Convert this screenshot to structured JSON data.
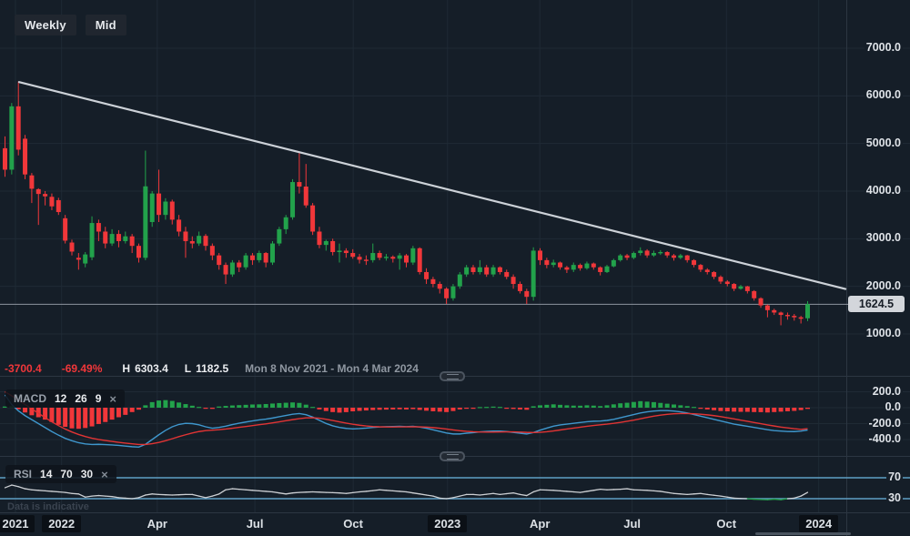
{
  "ui": {
    "toolbar": {
      "timeframe_label": "Weekly",
      "line_type_label": "Mid"
    },
    "status": {
      "change": "-3700.4",
      "change_pct": "-69.49%",
      "high_label": "H",
      "high": "6303.4",
      "low_label": "L",
      "low": "1182.5",
      "range": "Mon 8 Nov 2021 - Mon 4 Mar 2024"
    },
    "indicators": {
      "macd": {
        "name": "MACD",
        "p1": "12",
        "p2": "26",
        "p3": "9",
        "close_glyph": "×"
      },
      "rsi": {
        "name": "RSI",
        "p1": "14",
        "p2": "70",
        "p3": "30",
        "close_glyph": "×"
      }
    },
    "footnote": "Data is indicative",
    "last_price": "1624.5"
  },
  "colors": {
    "up": "#22a24b",
    "down": "#f1373a",
    "macd_line": "#3f97cd",
    "signal_line": "#e13434",
    "rsi_line": "#cdd0d4",
    "rsi_levels": "#5f9fc5",
    "trendline": "#ccd1d7",
    "price_line": "#8e949e",
    "grid": "#1f2a35",
    "border": "#2c3642",
    "axis_text": "#dfe3e8",
    "badge_bg": "#d3d6db",
    "badge_text": "#181e27",
    "scrollbar": "#4a545f"
  },
  "chart_data": {
    "type": "candlestick",
    "interval": "weekly",
    "range_label": "Mon 8 Nov 2021 - Mon 4 Mar 2024",
    "high": 6303.4,
    "low": 1182.5,
    "last_close": 1624.5,
    "price_axis": [
      {
        "label": "7000.0",
        "value": 7000
      },
      {
        "label": "6000.0",
        "value": 6000
      },
      {
        "label": "5000.0",
        "value": 5000
      },
      {
        "label": "4000.0",
        "value": 4000
      },
      {
        "label": "3000.0",
        "value": 3000
      },
      {
        "label": "2000.0",
        "value": 2000
      },
      {
        "label": "1000.0",
        "value": 1000
      }
    ],
    "macd_axis": [
      {
        "label": "200.0",
        "value": 200
      },
      {
        "label": "0.0",
        "value": 0
      },
      {
        "label": "-200.0",
        "value": -200
      },
      {
        "label": "-400.0",
        "value": -400
      }
    ],
    "rsi_axis": [
      {
        "label": "70",
        "value": 70
      },
      {
        "label": "30",
        "value": 30
      }
    ],
    "time_axis": [
      {
        "label": "2021",
        "i": 1.9,
        "year": true
      },
      {
        "label": "2022",
        "i": 8.8,
        "year": true
      },
      {
        "label": "Apr",
        "i": 23.1
      },
      {
        "label": "Jul",
        "i": 37.7
      },
      {
        "label": "Oct",
        "i": 52.4
      },
      {
        "label": "2023",
        "i": 66.5,
        "year": true
      },
      {
        "label": "Apr",
        "i": 80.3
      },
      {
        "label": "Jul",
        "i": 94.1
      },
      {
        "label": "Oct",
        "i": 108.2
      },
      {
        "label": "2024",
        "i": 122,
        "year": true
      }
    ],
    "trendline": {
      "from": {
        "i": 2.45,
        "price": 6290
      },
      "to": {
        "i": 126,
        "price": 1945
      }
    },
    "candles": [
      [
        4900,
        5150,
        4300,
        4450
      ],
      [
        4450,
        5850,
        4350,
        5780
      ],
      [
        5780,
        6303.4,
        4750,
        4870
      ],
      [
        5100,
        5180,
        4250,
        4350
      ],
      [
        4330,
        4380,
        3750,
        4050
      ],
      [
        4040,
        4060,
        3290,
        3940
      ],
      [
        3940,
        4000,
        3700,
        3890
      ],
      [
        3880,
        3950,
        3600,
        3680
      ],
      [
        3810,
        3860,
        3500,
        3560
      ],
      [
        3430,
        3500,
        2900,
        2960
      ],
      [
        2920,
        2980,
        2650,
        2730
      ],
      [
        2600,
        2700,
        2350,
        2560
      ],
      [
        2480,
        2720,
        2400,
        2670
      ],
      [
        2610,
        3470,
        2550,
        3330
      ],
      [
        3330,
        3400,
        2950,
        3150
      ],
      [
        3150,
        3250,
        2800,
        2900
      ],
      [
        2900,
        3200,
        2850,
        3100
      ],
      [
        3100,
        3180,
        2820,
        2950
      ],
      [
        2950,
        3150,
        2900,
        3050
      ],
      [
        3050,
        3100,
        2700,
        2850
      ],
      [
        2850,
        2900,
        2500,
        2600
      ],
      [
        2600,
        4850,
        2550,
        4100
      ],
      [
        3350,
        4000,
        3250,
        3950
      ],
      [
        3950,
        4450,
        3350,
        3500
      ],
      [
        3500,
        3850,
        3400,
        3780
      ],
      [
        3780,
        3820,
        3300,
        3400
      ],
      [
        3400,
        3500,
        3050,
        3150
      ],
      [
        3150,
        3250,
        2600,
        2950
      ],
      [
        2950,
        3050,
        2800,
        2900
      ],
      [
        2900,
        3150,
        2850,
        3060
      ],
      [
        3060,
        3100,
        2750,
        2850
      ],
      [
        2850,
        2900,
        2550,
        2650
      ],
      [
        2650,
        2700,
        2350,
        2450
      ],
      [
        2450,
        2500,
        2050,
        2250
      ],
      [
        2250,
        2550,
        2200,
        2500
      ],
      [
        2500,
        2550,
        2300,
        2400
      ],
      [
        2400,
        2700,
        2350,
        2650
      ],
      [
        2650,
        2700,
        2450,
        2550
      ],
      [
        2550,
        2750,
        2500,
        2700
      ],
      [
        2700,
        2720,
        2400,
        2500
      ],
      [
        2500,
        2950,
        2450,
        2900
      ],
      [
        2900,
        3250,
        2850,
        3200
      ],
      [
        3200,
        3500,
        3100,
        3450
      ],
      [
        3450,
        4250,
        3400,
        4190
      ],
      [
        4190,
        4800,
        3950,
        4095
      ],
      [
        4095,
        4570,
        3650,
        3700
      ],
      [
        3700,
        3750,
        3080,
        3150
      ],
      [
        3150,
        3250,
        2800,
        2870
      ],
      [
        2870,
        2980,
        2750,
        2950
      ],
      [
        2950,
        3000,
        2650,
        2720
      ],
      [
        2720,
        2900,
        2500,
        2750
      ],
      [
        2750,
        2800,
        2600,
        2700
      ],
      [
        2700,
        2780,
        2580,
        2620
      ],
      [
        2620,
        2680,
        2480,
        2560
      ],
      [
        2560,
        2650,
        2450,
        2550
      ],
      [
        2550,
        2900,
        2500,
        2700
      ],
      [
        2700,
        2750,
        2550,
        2600
      ],
      [
        2600,
        2680,
        2540,
        2620
      ],
      [
        2620,
        2650,
        2500,
        2580
      ],
      [
        2580,
        2700,
        2350,
        2650
      ],
      [
        2650,
        2680,
        2400,
        2500
      ],
      [
        2500,
        2850,
        2450,
        2800
      ],
      [
        2800,
        2820,
        2250,
        2300
      ],
      [
        2300,
        2380,
        2050,
        2150
      ],
      [
        2150,
        2200,
        1980,
        2050
      ],
      [
        2050,
        2100,
        1850,
        1950
      ],
      [
        1950,
        1980,
        1630,
        1750
      ],
      [
        1750,
        2050,
        1700,
        2000
      ],
      [
        2000,
        2300,
        1950,
        2250
      ],
      [
        2250,
        2450,
        2200,
        2400
      ],
      [
        2400,
        2450,
        2250,
        2300
      ],
      [
        2300,
        2550,
        2250,
        2400
      ],
      [
        2400,
        2450,
        2200,
        2250
      ],
      [
        2250,
        2450,
        2200,
        2400
      ],
      [
        2400,
        2420,
        2250,
        2300
      ],
      [
        2300,
        2350,
        2150,
        2200
      ],
      [
        2200,
        2250,
        1950,
        2050
      ],
      [
        2050,
        2100,
        1850,
        1900
      ],
      [
        1900,
        1950,
        1630,
        1780
      ],
      [
        1780,
        2820,
        1700,
        2750
      ],
      [
        2750,
        2800,
        2450,
        2550
      ],
      [
        2550,
        2600,
        2380,
        2450
      ],
      [
        2450,
        2560,
        2400,
        2500
      ],
      [
        2500,
        2520,
        2350,
        2400
      ],
      [
        2400,
        2430,
        2280,
        2350
      ],
      [
        2350,
        2500,
        2300,
        2450
      ],
      [
        2450,
        2480,
        2330,
        2380
      ],
      [
        2380,
        2520,
        2350,
        2480
      ],
      [
        2480,
        2500,
        2350,
        2400
      ],
      [
        2400,
        2420,
        2230,
        2300
      ],
      [
        2300,
        2450,
        2280,
        2420
      ],
      [
        2420,
        2580,
        2400,
        2550
      ],
      [
        2550,
        2680,
        2520,
        2650
      ],
      [
        2650,
        2680,
        2550,
        2600
      ],
      [
        2600,
        2730,
        2570,
        2700
      ],
      [
        2700,
        2820,
        2650,
        2750
      ],
      [
        2750,
        2780,
        2600,
        2650
      ],
      [
        2650,
        2750,
        2620,
        2700
      ],
      [
        2700,
        2760,
        2660,
        2720
      ],
      [
        2720,
        2740,
        2600,
        2650
      ],
      [
        2650,
        2680,
        2540,
        2600
      ],
      [
        2600,
        2680,
        2570,
        2650
      ],
      [
        2650,
        2660,
        2500,
        2550
      ],
      [
        2550,
        2570,
        2400,
        2450
      ],
      [
        2450,
        2470,
        2300,
        2350
      ],
      [
        2350,
        2380,
        2250,
        2300
      ],
      [
        2300,
        2320,
        2150,
        2200
      ],
      [
        2200,
        2230,
        2050,
        2100
      ],
      [
        2100,
        2130,
        2000,
        2050
      ],
      [
        2050,
        2070,
        1900,
        1950
      ],
      [
        1950,
        2030,
        1930,
        2000
      ],
      [
        2000,
        2010,
        1850,
        1900
      ],
      [
        1900,
        1920,
        1700,
        1750
      ],
      [
        1750,
        1770,
        1550,
        1600
      ],
      [
        1600,
        1620,
        1350,
        1500
      ],
      [
        1500,
        1530,
        1400,
        1450
      ],
      [
        1450,
        1470,
        1182.5,
        1400
      ],
      [
        1400,
        1450,
        1300,
        1380
      ],
      [
        1380,
        1420,
        1280,
        1350
      ],
      [
        1350,
        1380,
        1220,
        1320
      ],
      [
        1330,
        1690,
        1270,
        1624.5
      ]
    ],
    "macd": {
      "histogram": [
        15,
        20,
        -20,
        -60,
        -95,
        -120,
        -150,
        -180,
        -215,
        -240,
        -260,
        -265,
        -255,
        -235,
        -205,
        -180,
        -150,
        -120,
        -90,
        -55,
        -25,
        30,
        70,
        90,
        95,
        85,
        65,
        45,
        25,
        10,
        -10,
        -15,
        15,
        22,
        28,
        32,
        36,
        40,
        42,
        46,
        52,
        58,
        62,
        66,
        60,
        38,
        10,
        -22,
        -42,
        -55,
        -62,
        -56,
        -46,
        -40,
        -35,
        -30,
        -26,
        -24,
        -22,
        -20,
        -22,
        -18,
        -28,
        -38,
        -45,
        -50,
        -55,
        -42,
        -22,
        -10,
        -14,
        8,
        10,
        14,
        10,
        -10,
        -16,
        -22,
        -26,
        18,
        30,
        36,
        42,
        36,
        30,
        26,
        25,
        30,
        26,
        20,
        30,
        42,
        55,
        62,
        72,
        82,
        76,
        70,
        60,
        50,
        40,
        30,
        20,
        10,
        -12,
        -22,
        -32,
        -42,
        -46,
        -50,
        -52,
        -52,
        -55,
        -56,
        -60,
        -55,
        -50,
        -45,
        -40,
        -30,
        -15
      ],
      "macd_line": [
        160,
        40,
        -40,
        -100,
        -150,
        -200,
        -250,
        -300,
        -345,
        -385,
        -415,
        -440,
        -455,
        -462,
        -460,
        -463,
        -468,
        -474,
        -482,
        -490,
        -495,
        -460,
        -400,
        -340,
        -285,
        -240,
        -210,
        -196,
        -200,
        -215,
        -240,
        -258,
        -248,
        -232,
        -212,
        -195,
        -180,
        -166,
        -154,
        -143,
        -130,
        -114,
        -98,
        -82,
        -74,
        -88,
        -118,
        -158,
        -198,
        -228,
        -248,
        -260,
        -266,
        -262,
        -256,
        -248,
        -242,
        -238,
        -236,
        -234,
        -238,
        -234,
        -244,
        -258,
        -278,
        -298,
        -318,
        -330,
        -330,
        -320,
        -314,
        -304,
        -298,
        -294,
        -294,
        -300,
        -310,
        -320,
        -330,
        -312,
        -282,
        -256,
        -232,
        -216,
        -206,
        -196,
        -186,
        -176,
        -170,
        -168,
        -160,
        -146,
        -126,
        -106,
        -86,
        -66,
        -52,
        -42,
        -36,
        -36,
        -42,
        -52,
        -66,
        -86,
        -106,
        -126,
        -146,
        -166,
        -186,
        -206,
        -220,
        -234,
        -248,
        -262,
        -276,
        -288,
        -294,
        -299,
        -300,
        -294,
        -280
      ],
      "signal_line": [
        200,
        150,
        95,
        40,
        -15,
        -70,
        -125,
        -178,
        -225,
        -268,
        -305,
        -336,
        -362,
        -383,
        -399,
        -412,
        -424,
        -435,
        -445,
        -454,
        -462,
        -462,
        -452,
        -436,
        -415,
        -390,
        -364,
        -340,
        -318,
        -300,
        -288,
        -282,
        -276,
        -268,
        -258,
        -247,
        -236,
        -225,
        -214,
        -203,
        -191,
        -178,
        -164,
        -150,
        -138,
        -128,
        -126,
        -132,
        -145,
        -161,
        -178,
        -194,
        -208,
        -220,
        -229,
        -236,
        -240,
        -242,
        -242,
        -241,
        -241,
        -240,
        -241,
        -244,
        -250,
        -258,
        -268,
        -279,
        -289,
        -297,
        -302,
        -305,
        -306,
        -306,
        -305,
        -304,
        -304,
        -306,
        -310,
        -312,
        -309,
        -302,
        -292,
        -280,
        -268,
        -256,
        -245,
        -234,
        -224,
        -215,
        -207,
        -197,
        -185,
        -171,
        -156,
        -139,
        -122,
        -107,
        -93,
        -83,
        -76,
        -73,
        -73,
        -76,
        -82,
        -90,
        -100,
        -112,
        -126,
        -141,
        -156,
        -171,
        -186,
        -201,
        -216,
        -230,
        -243,
        -254,
        -264,
        -272,
        -264
      ]
    },
    "rsi": [
      51,
      56,
      53,
      49,
      47,
      46,
      45,
      44,
      43,
      42,
      40,
      39,
      33,
      35,
      36,
      35,
      34,
      32,
      31,
      30,
      32,
      37,
      39,
      38,
      37.5,
      37,
      37.5,
      38,
      38,
      35,
      32,
      35,
      39,
      47,
      49,
      48,
      47,
      46,
      45,
      44,
      43,
      41,
      39,
      41,
      42,
      42.5,
      43,
      42.5,
      42,
      41.5,
      41,
      40,
      41.5,
      43,
      44,
      45.5,
      47,
      46,
      45,
      44,
      43,
      41,
      39,
      37,
      35,
      31,
      30,
      32,
      35,
      38,
      38,
      37,
      38.5,
      40,
      38,
      39.5,
      41,
      38,
      36,
      43,
      47,
      46.5,
      46,
      45,
      44,
      43,
      42,
      44,
      46,
      48,
      47,
      47.5,
      48,
      49,
      47,
      46.5,
      46,
      45,
      44,
      42,
      40,
      39,
      38,
      39,
      40,
      38,
      36.5,
      35,
      33,
      31,
      30.5,
      30,
      29,
      28.5,
      28,
      29,
      28,
      30,
      31,
      35,
      42
    ]
  }
}
